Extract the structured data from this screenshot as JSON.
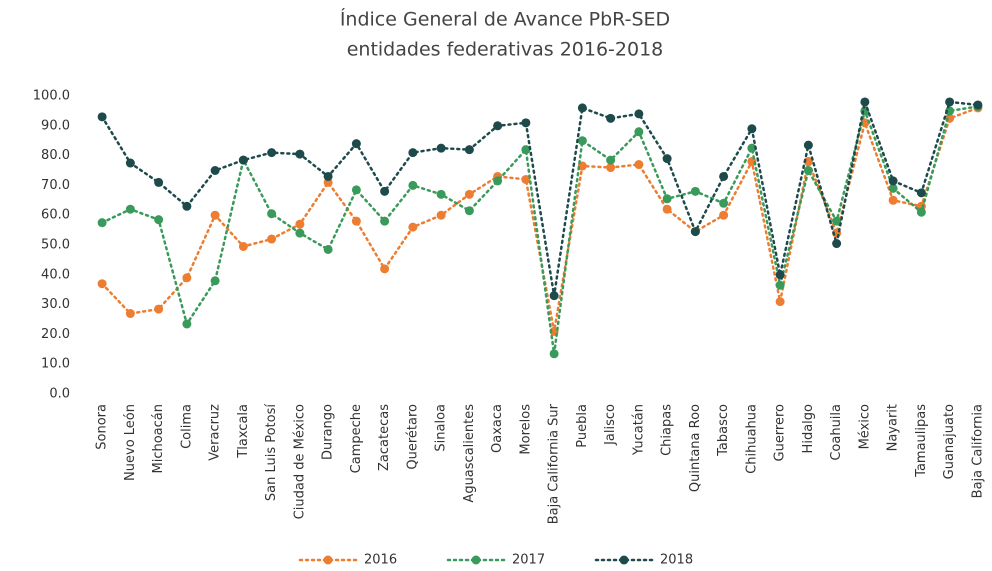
{
  "chart_data": {
    "type": "line",
    "title": [
      "Índice General de Avance PbR-SED",
      "entidades federativas 2016-2018"
    ],
    "categories": [
      "Sonora",
      "Nuevo León",
      "Michoacán",
      "Colima",
      "Veracruz",
      "Tlaxcala",
      "San Luis Potosí",
      "Ciudad de México",
      "Durango",
      "Campeche",
      "Zacatecas",
      "Querétaro",
      "Sinaloa",
      "Aguascalientes",
      "Oaxaca",
      "Morelos",
      "Baja California Sur",
      "Puebla",
      "Jalisco",
      "Yucatán",
      "Chiapas",
      "Quintana Roo",
      "Tabasco",
      "Chihuahua",
      "Guerrero",
      "Hidalgo",
      "Coahuila",
      "México",
      "Nayarit",
      "Tamaulipas",
      "Guanajuato",
      "Baja California"
    ],
    "series": [
      {
        "name": "2016",
        "color": "#ed7d31",
        "values": [
          37,
          27,
          28.5,
          39,
          60,
          49.5,
          52,
          57,
          71,
          58,
          42,
          56,
          60,
          67,
          73,
          72,
          21,
          76.5,
          76,
          77,
          62,
          54.5,
          60,
          78,
          31,
          78,
          54,
          91,
          65,
          63,
          92.5,
          96
        ]
      },
      {
        "name": "2017",
        "color": "#3a9a5b",
        "values": [
          57.5,
          62,
          58.5,
          23.5,
          38,
          78.5,
          60.5,
          54,
          48.5,
          68.5,
          58,
          70,
          67,
          61.5,
          71.5,
          82,
          13.5,
          85,
          78.5,
          88,
          65.5,
          68,
          64,
          82.5,
          36.5,
          75,
          58,
          95,
          69,
          61,
          95,
          96.5
        ]
      },
      {
        "name": "2018",
        "color": "#1f4a4c",
        "values": [
          93,
          77.5,
          71,
          63,
          75,
          78.5,
          81,
          80.5,
          73,
          84,
          68,
          81,
          82.5,
          82,
          90,
          91,
          33,
          96,
          92.5,
          94,
          79,
          54.5,
          73,
          89,
          40,
          83.5,
          50.5,
          98,
          71.5,
          67.5,
          98,
          97
        ]
      }
    ],
    "ylim": [
      0,
      100
    ],
    "yticks": [
      {
        "value": 0,
        "label": "0.0"
      },
      {
        "value": 10,
        "label": "10.0"
      },
      {
        "value": 20,
        "label": "20.0"
      },
      {
        "value": 30,
        "label": "30.0"
      },
      {
        "value": 40,
        "label": "40.0"
      },
      {
        "value": 50,
        "label": "50.0"
      },
      {
        "value": 60,
        "label": "60.0"
      },
      {
        "value": 70,
        "label": "70.0"
      },
      {
        "value": 80,
        "label": "80.0"
      },
      {
        "value": 90,
        "label": "90.0"
      },
      {
        "value": 100,
        "label": "100.0"
      }
    ],
    "grid": false
  }
}
